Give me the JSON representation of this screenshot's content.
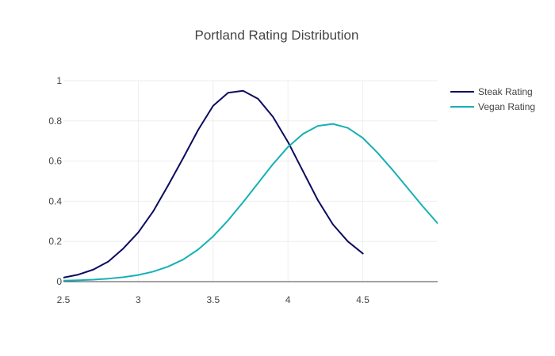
{
  "chart_data": {
    "type": "line",
    "title": "Portland Rating Distribution",
    "xlabel": "",
    "ylabel": "",
    "xlim": [
      2.5,
      5.0
    ],
    "ylim": [
      0,
      1.0
    ],
    "x_ticks": [
      2.5,
      3,
      3.5,
      4,
      4.5
    ],
    "x_tick_labels": [
      "2.5",
      "3",
      "3.5",
      "4",
      "4.5"
    ],
    "y_ticks": [
      0,
      0.2,
      0.4,
      0.6,
      0.8,
      1
    ],
    "y_tick_labels": [
      "0",
      "0.2",
      "0.4",
      "0.6",
      "0.8",
      "1"
    ],
    "grid": true,
    "legend_position": "top-right",
    "series": [
      {
        "name": "Steak Rating",
        "color": "#0b0b5e",
        "x": [
          2.5,
          2.6,
          2.7,
          2.8,
          2.9,
          3.0,
          3.1,
          3.2,
          3.3,
          3.4,
          3.5,
          3.6,
          3.7,
          3.8,
          3.9,
          4.0,
          4.1,
          4.2,
          4.3,
          4.4,
          4.5
        ],
        "y": [
          0.02,
          0.035,
          0.06,
          0.1,
          0.165,
          0.245,
          0.35,
          0.48,
          0.615,
          0.755,
          0.875,
          0.94,
          0.95,
          0.91,
          0.82,
          0.695,
          0.55,
          0.405,
          0.285,
          0.2,
          0.14
        ]
      },
      {
        "name": "Vegan Rating",
        "color": "#17b0b5",
        "x": [
          2.5,
          2.6,
          2.7,
          2.8,
          2.9,
          3.0,
          3.1,
          3.2,
          3.3,
          3.4,
          3.5,
          3.6,
          3.7,
          3.8,
          3.9,
          4.0,
          4.1,
          4.2,
          4.3,
          4.4,
          4.5,
          4.6,
          4.7,
          4.8,
          4.9,
          5.0
        ],
        "y": [
          0.005,
          0.007,
          0.01,
          0.015,
          0.022,
          0.033,
          0.05,
          0.075,
          0.11,
          0.16,
          0.225,
          0.305,
          0.395,
          0.49,
          0.585,
          0.67,
          0.735,
          0.775,
          0.785,
          0.765,
          0.715,
          0.64,
          0.555,
          0.465,
          0.375,
          0.29
        ]
      }
    ]
  },
  "colors": {
    "grid": "#eeeeee",
    "zero_line": "#444444",
    "text": "#444444",
    "background": "#ffffff"
  }
}
